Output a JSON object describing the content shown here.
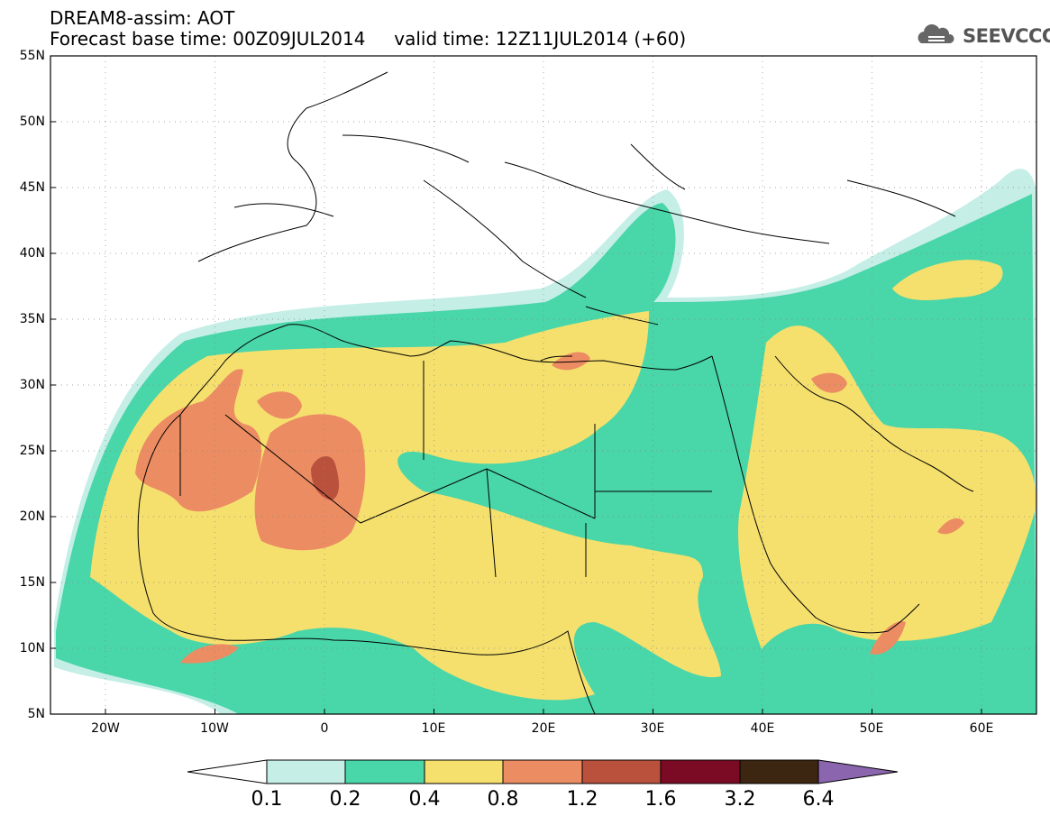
{
  "header": {
    "line1": "DREAM8-assim: AOT",
    "line2": "Forecast base time: 00Z09JUL2014     valid time: 12Z11JUL2014 (+60)"
  },
  "logo": {
    "text": "SEEVCCC",
    "icon": "cloud-icon"
  },
  "map": {
    "lat_labels": [
      "55N",
      "50N",
      "45N",
      "40N",
      "35N",
      "30N",
      "25N",
      "20N",
      "15N",
      "10N",
      "5N"
    ],
    "lon_labels": [
      "20W",
      "10W",
      "0",
      "10E",
      "20E",
      "30E",
      "40E",
      "50E",
      "60E"
    ],
    "colors": {
      "c01": "#c4eee6",
      "c02": "#49d6a8",
      "c04": "#f5e06e",
      "c08": "#ec8c63",
      "c12": "#ba513d",
      "c16": "#7b0b25",
      "c32": "#3c2511",
      "c64": "#8b65ad",
      "land": "#ffffff",
      "border": "#000000"
    }
  },
  "colorbar": {
    "labels": [
      "0.1",
      "0.2",
      "0.4",
      "0.8",
      "1.2",
      "1.6",
      "3.2",
      "6.4"
    ]
  }
}
